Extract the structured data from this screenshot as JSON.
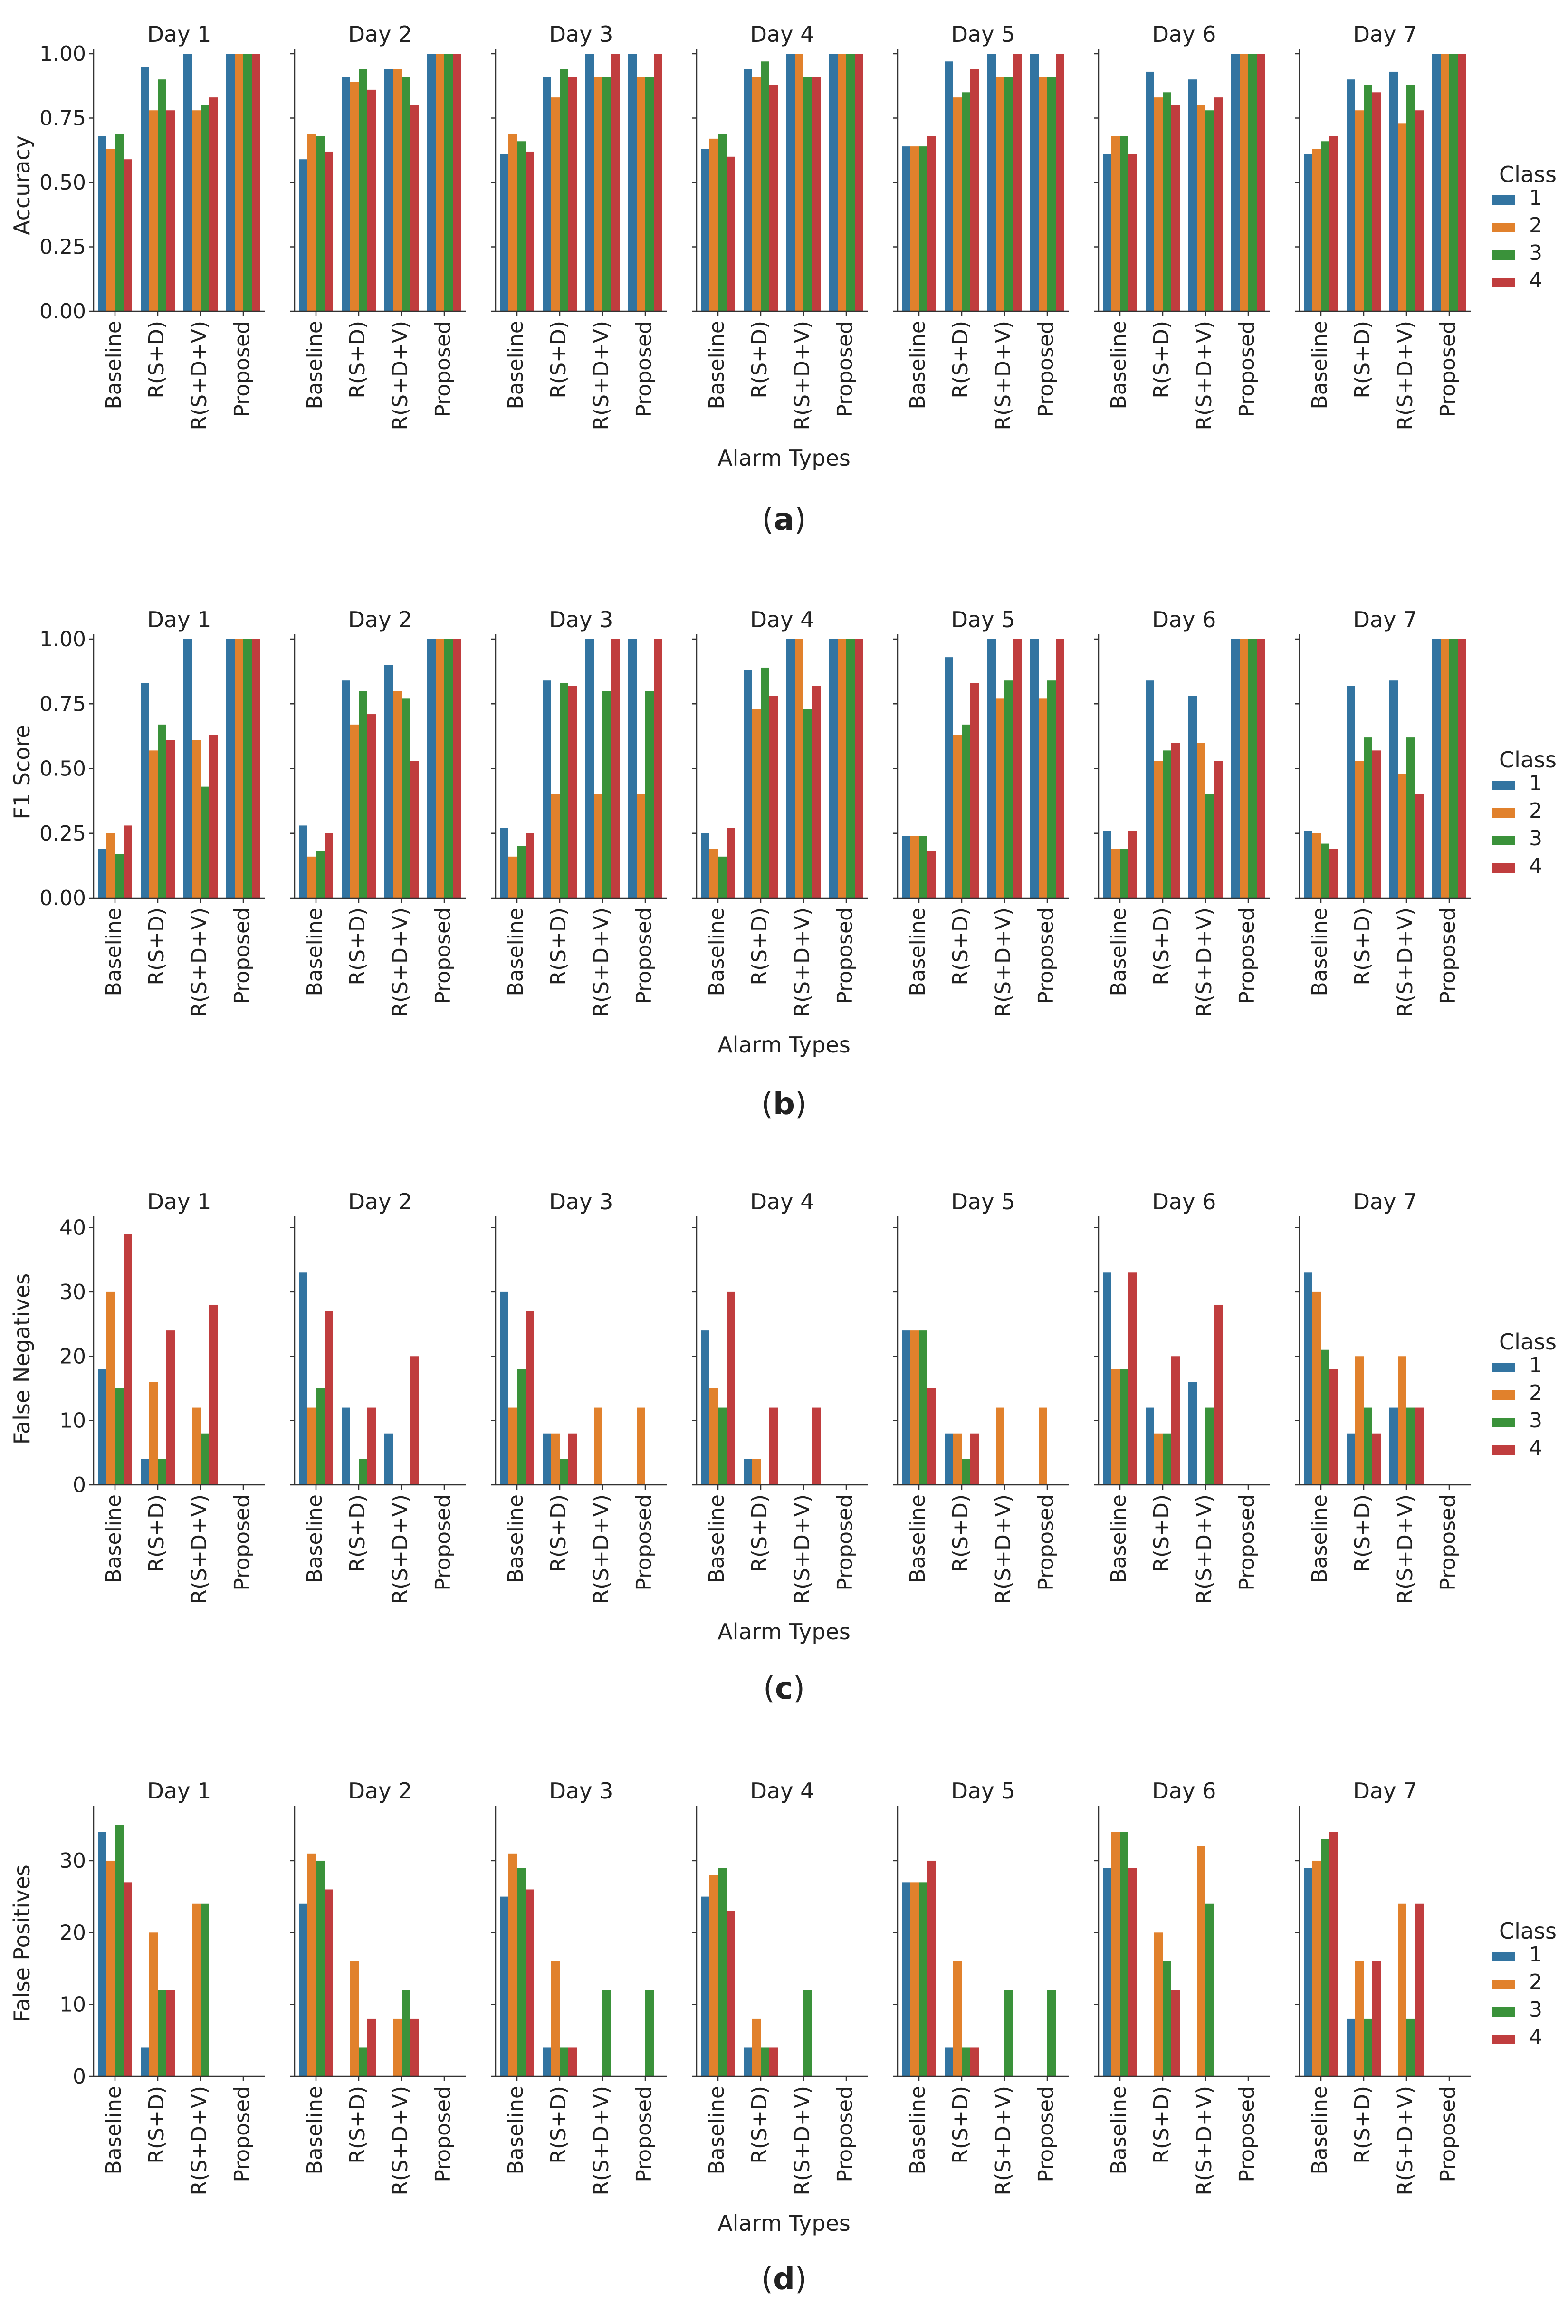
{
  "figure": {
    "x_axis_label": "Alarm Types",
    "legend_title": "Class",
    "class_names": [
      "1",
      "2",
      "3",
      "4"
    ],
    "class_colors": [
      "#3274a1",
      "#e1812c",
      "#3a923a",
      "#c03d3e"
    ],
    "day_titles": [
      "Day 1",
      "Day 2",
      "Day 3",
      "Day 4",
      "Day 5",
      "Day 6",
      "Day 7"
    ],
    "alarm_types": [
      "Baseline",
      "R(S+D)",
      "R(S+D+V)",
      "Proposed"
    ]
  },
  "chart_data": [
    {
      "type": "bar",
      "panel_label": "a",
      "ylabel": "Accuracy",
      "ylim": [
        0,
        1.0
      ],
      "yticks": [
        0.0,
        0.25,
        0.5,
        0.75,
        1.0
      ],
      "ytick_labels": [
        "0.00",
        "0.25",
        "0.50",
        "0.75",
        "1.00"
      ],
      "categories": [
        "Baseline",
        "R(S+D)",
        "R(S+D+V)",
        "Proposed"
      ],
      "days": [
        {
          "title": "Day 1",
          "values": [
            [
              0.68,
              0.63,
              0.69,
              0.59
            ],
            [
              0.95,
              0.78,
              0.9,
              0.78
            ],
            [
              1.0,
              0.78,
              0.8,
              0.83
            ],
            [
              1.0,
              1.0,
              1.0,
              1.0
            ]
          ]
        },
        {
          "title": "Day 2",
          "values": [
            [
              0.59,
              0.69,
              0.68,
              0.62
            ],
            [
              0.91,
              0.89,
              0.94,
              0.86
            ],
            [
              0.94,
              0.94,
              0.91,
              0.8
            ],
            [
              1.0,
              1.0,
              1.0,
              1.0
            ]
          ]
        },
        {
          "title": "Day 3",
          "values": [
            [
              0.61,
              0.69,
              0.66,
              0.62
            ],
            [
              0.91,
              0.83,
              0.94,
              0.91
            ],
            [
              1.0,
              0.91,
              0.91,
              1.0
            ],
            [
              1.0,
              0.91,
              0.91,
              1.0
            ]
          ]
        },
        {
          "title": "Day 4",
          "values": [
            [
              0.63,
              0.67,
              0.69,
              0.6
            ],
            [
              0.94,
              0.91,
              0.97,
              0.88
            ],
            [
              1.0,
              1.0,
              0.91,
              0.91
            ],
            [
              1.0,
              1.0,
              1.0,
              1.0
            ]
          ]
        },
        {
          "title": "Day 5",
          "values": [
            [
              0.64,
              0.64,
              0.64,
              0.68
            ],
            [
              0.97,
              0.83,
              0.85,
              0.94
            ],
            [
              1.0,
              0.91,
              0.91,
              1.0
            ],
            [
              1.0,
              0.91,
              0.91,
              1.0
            ]
          ]
        },
        {
          "title": "Day 6",
          "values": [
            [
              0.61,
              0.68,
              0.68,
              0.61
            ],
            [
              0.93,
              0.83,
              0.85,
              0.8
            ],
            [
              0.9,
              0.8,
              0.78,
              0.83
            ],
            [
              1.0,
              1.0,
              1.0,
              1.0
            ]
          ]
        },
        {
          "title": "Day 7",
          "values": [
            [
              0.61,
              0.63,
              0.66,
              0.68
            ],
            [
              0.9,
              0.78,
              0.88,
              0.85
            ],
            [
              0.93,
              0.73,
              0.88,
              0.78
            ],
            [
              1.0,
              1.0,
              1.0,
              1.0
            ]
          ]
        }
      ]
    },
    {
      "type": "bar",
      "panel_label": "b",
      "ylabel": "F1 Score",
      "ylim": [
        0,
        1.0
      ],
      "yticks": [
        0.0,
        0.25,
        0.5,
        0.75,
        1.0
      ],
      "ytick_labels": [
        "0.00",
        "0.25",
        "0.50",
        "0.75",
        "1.00"
      ],
      "categories": [
        "Baseline",
        "R(S+D)",
        "R(S+D+V)",
        "Proposed"
      ],
      "days": [
        {
          "title": "Day 1",
          "values": [
            [
              0.19,
              0.25,
              0.17,
              0.28
            ],
            [
              0.83,
              0.57,
              0.67,
              0.61
            ],
            [
              1.0,
              0.61,
              0.43,
              0.63
            ],
            [
              1.0,
              1.0,
              1.0,
              1.0
            ]
          ]
        },
        {
          "title": "Day 2",
          "values": [
            [
              0.28,
              0.16,
              0.18,
              0.25
            ],
            [
              0.84,
              0.67,
              0.8,
              0.71
            ],
            [
              0.9,
              0.8,
              0.77,
              0.53
            ],
            [
              1.0,
              1.0,
              1.0,
              1.0
            ]
          ]
        },
        {
          "title": "Day 3",
          "values": [
            [
              0.27,
              0.16,
              0.2,
              0.25
            ],
            [
              0.84,
              0.4,
              0.83,
              0.82
            ],
            [
              1.0,
              0.4,
              0.8,
              1.0
            ],
            [
              1.0,
              0.4,
              0.8,
              1.0
            ]
          ]
        },
        {
          "title": "Day 4",
          "values": [
            [
              0.25,
              0.19,
              0.16,
              0.27
            ],
            [
              0.88,
              0.73,
              0.89,
              0.78
            ],
            [
              1.0,
              1.0,
              0.73,
              0.82
            ],
            [
              1.0,
              1.0,
              1.0,
              1.0
            ]
          ]
        },
        {
          "title": "Day 5",
          "values": [
            [
              0.24,
              0.24,
              0.24,
              0.18
            ],
            [
              0.93,
              0.63,
              0.67,
              0.83
            ],
            [
              1.0,
              0.77,
              0.84,
              1.0
            ],
            [
              1.0,
              0.77,
              0.84,
              1.0
            ]
          ]
        },
        {
          "title": "Day 6",
          "values": [
            [
              0.26,
              0.19,
              0.19,
              0.26
            ],
            [
              0.84,
              0.53,
              0.57,
              0.6
            ],
            [
              0.78,
              0.6,
              0.4,
              0.53
            ],
            [
              1.0,
              1.0,
              1.0,
              1.0
            ]
          ]
        },
        {
          "title": "Day 7",
          "values": [
            [
              0.26,
              0.25,
              0.21,
              0.19
            ],
            [
              0.82,
              0.53,
              0.62,
              0.57
            ],
            [
              0.84,
              0.48,
              0.62,
              0.4
            ],
            [
              1.0,
              1.0,
              1.0,
              1.0
            ]
          ]
        }
      ]
    },
    {
      "type": "bar",
      "panel_label": "c",
      "ylabel": "False Negatives",
      "ylim": [
        0,
        41
      ],
      "yticks": [
        0,
        10,
        20,
        30,
        40
      ],
      "ytick_labels": [
        "0",
        "10",
        "20",
        "30",
        "40"
      ],
      "categories": [
        "Baseline",
        "R(S+D)",
        "R(S+D+V)",
        "Proposed"
      ],
      "days": [
        {
          "title": "Day 1",
          "values": [
            [
              18,
              30,
              15,
              39
            ],
            [
              4,
              16,
              4,
              24
            ],
            [
              0,
              12,
              8,
              28
            ],
            [
              0,
              0,
              0,
              0
            ]
          ]
        },
        {
          "title": "Day 2",
          "values": [
            [
              33,
              12,
              15,
              27
            ],
            [
              12,
              0,
              4,
              12
            ],
            [
              8,
              0,
              0,
              20
            ],
            [
              0,
              0,
              0,
              0
            ]
          ]
        },
        {
          "title": "Day 3",
          "values": [
            [
              30,
              12,
              18,
              27
            ],
            [
              8,
              8,
              4,
              8
            ],
            [
              0,
              12,
              0,
              0
            ],
            [
              0,
              12,
              0,
              0
            ]
          ]
        },
        {
          "title": "Day 4",
          "values": [
            [
              24,
              15,
              12,
              30
            ],
            [
              4,
              4,
              0,
              12
            ],
            [
              0,
              0,
              0,
              12
            ],
            [
              0,
              0,
              0,
              0
            ]
          ]
        },
        {
          "title": "Day 5",
          "values": [
            [
              24,
              24,
              24,
              15
            ],
            [
              8,
              8,
              4,
              8
            ],
            [
              0,
              12,
              0,
              0
            ],
            [
              0,
              12,
              0,
              0
            ]
          ]
        },
        {
          "title": "Day 6",
          "values": [
            [
              33,
              18,
              18,
              33
            ],
            [
              12,
              8,
              8,
              20
            ],
            [
              16,
              0,
              12,
              28
            ],
            [
              0,
              0,
              0,
              0
            ]
          ]
        },
        {
          "title": "Day 7",
          "values": [
            [
              33,
              30,
              21,
              18
            ],
            [
              8,
              20,
              12,
              8
            ],
            [
              12,
              20,
              12,
              12
            ],
            [
              0,
              0,
              0,
              0
            ]
          ]
        }
      ]
    },
    {
      "type": "bar",
      "panel_label": "d",
      "ylabel": "False Positives",
      "ylim": [
        0,
        37
      ],
      "yticks": [
        0,
        10,
        20,
        30
      ],
      "ytick_labels": [
        "0",
        "10",
        "20",
        "30"
      ],
      "categories": [
        "Baseline",
        "R(S+D)",
        "R(S+D+V)",
        "Proposed"
      ],
      "days": [
        {
          "title": "Day 1",
          "values": [
            [
              34,
              30,
              35,
              27
            ],
            [
              4,
              20,
              12,
              12
            ],
            [
              0,
              24,
              24,
              0
            ],
            [
              0,
              0,
              0,
              0
            ]
          ]
        },
        {
          "title": "Day 2",
          "values": [
            [
              24,
              31,
              30,
              26
            ],
            [
              0,
              16,
              4,
              8
            ],
            [
              0,
              8,
              12,
              8
            ],
            [
              0,
              0,
              0,
              0
            ]
          ]
        },
        {
          "title": "Day 3",
          "values": [
            [
              25,
              31,
              29,
              26
            ],
            [
              4,
              16,
              4,
              4
            ],
            [
              0,
              0,
              12,
              0
            ],
            [
              0,
              0,
              12,
              0
            ]
          ]
        },
        {
          "title": "Day 4",
          "values": [
            [
              25,
              28,
              29,
              23
            ],
            [
              4,
              8,
              4,
              4
            ],
            [
              0,
              0,
              12,
              0
            ],
            [
              0,
              0,
              0,
              0
            ]
          ]
        },
        {
          "title": "Day 5",
          "values": [
            [
              27,
              27,
              27,
              30
            ],
            [
              4,
              16,
              4,
              4
            ],
            [
              0,
              0,
              12,
              0
            ],
            [
              0,
              0,
              12,
              0
            ]
          ]
        },
        {
          "title": "Day 6",
          "values": [
            [
              29,
              34,
              34,
              29
            ],
            [
              0,
              20,
              16,
              12
            ],
            [
              0,
              32,
              24,
              0
            ],
            [
              0,
              0,
              0,
              0
            ]
          ]
        },
        {
          "title": "Day 7",
          "values": [
            [
              29,
              30,
              33,
              34
            ],
            [
              8,
              16,
              8,
              16
            ],
            [
              0,
              24,
              8,
              24
            ],
            [
              0,
              0,
              0,
              0
            ]
          ]
        }
      ]
    }
  ]
}
